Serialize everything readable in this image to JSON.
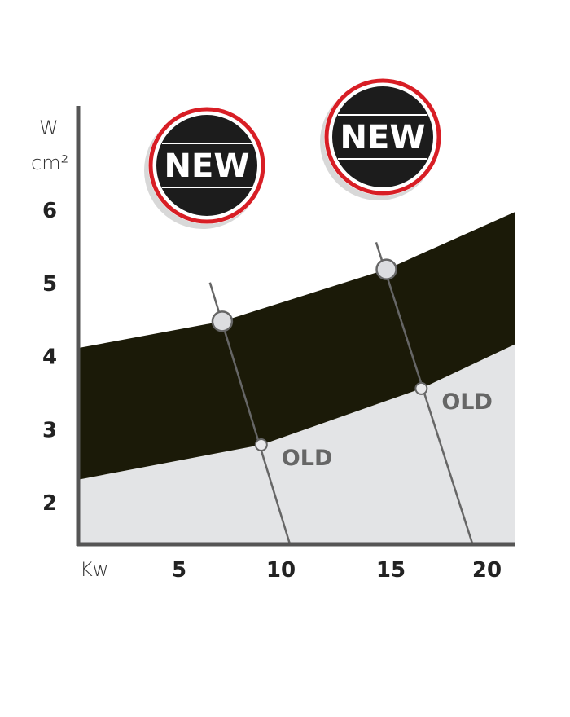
{
  "chart_data": {
    "type": "area",
    "ylabel": "W cm²",
    "ylabel_lines": [
      "W",
      "cm²"
    ],
    "xlabel": "Kw",
    "x_ticks": [
      5,
      10,
      15,
      20
    ],
    "y_ticks": [
      2,
      3,
      4,
      5,
      6
    ],
    "xlim": [
      0,
      21.4
    ],
    "ylim": [
      1.4,
      7.4
    ],
    "grid": false,
    "band": {
      "color": "#1b1a08",
      "upper": [
        [
          0,
          4.1
        ],
        [
          7.1,
          4.47
        ],
        [
          15.1,
          5.18
        ],
        [
          21.4,
          5.97
        ]
      ],
      "lower": [
        [
          0,
          2.3
        ],
        [
          9.0,
          2.78
        ],
        [
          16.8,
          3.55
        ],
        [
          21.4,
          4.16
        ]
      ]
    },
    "below_band_color": "#e3e4e6",
    "lines": [
      {
        "from": [
          6.5,
          5.0
        ],
        "to": [
          10.4,
          1.42
        ],
        "new_point": [
          7.1,
          4.47
        ],
        "old_point": [
          9.0,
          2.78
        ],
        "old_label": "OLD"
      },
      {
        "from": [
          14.6,
          5.55
        ],
        "to": [
          19.3,
          1.42
        ],
        "new_point": [
          15.1,
          5.18
        ],
        "old_point": [
          16.8,
          3.55
        ],
        "old_label": "OLD"
      }
    ],
    "badges": [
      {
        "label": "NEW"
      },
      {
        "label": "NEW"
      }
    ],
    "colors": {
      "badge_fill": "#1c1c1c",
      "badge_ring": "#d81e25",
      "axis": "#555555",
      "line": "#666666"
    }
  }
}
